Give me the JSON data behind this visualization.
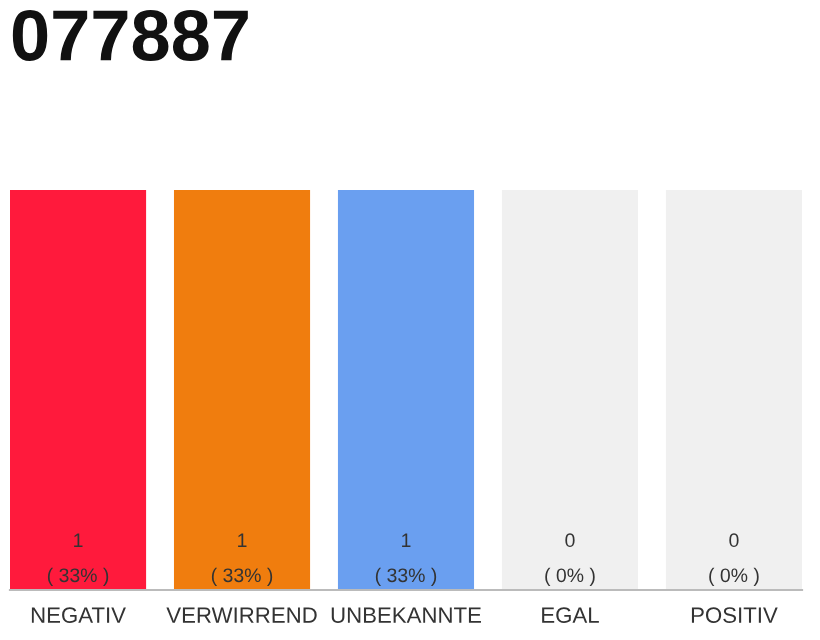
{
  "chart_data": {
    "type": "bar",
    "title": "077887",
    "categories": [
      "NEGATIV",
      "VERWIRREND",
      "UNBEKANNTE",
      "EGAL",
      "POSITIV"
    ],
    "series": [
      {
        "values": [
          1,
          1,
          1,
          0,
          0
        ],
        "colors": [
          "#ff1a3c",
          "#f07d0e",
          "#6a9ff0",
          "#f0f0f0",
          "#f0f0f0"
        ],
        "value_labels": [
          "1\n( 33% )",
          "1\n( 33% )",
          "1\n( 33% )",
          "0\n( 0% )",
          "0\n( 0% )"
        ]
      },
      {
        "values": [
          0,
          0,
          0,
          1,
          1
        ],
        "color": "#f0f0f0"
      }
    ],
    "ylim": [
      0,
      1
    ],
    "grid": false,
    "legend": false
  }
}
